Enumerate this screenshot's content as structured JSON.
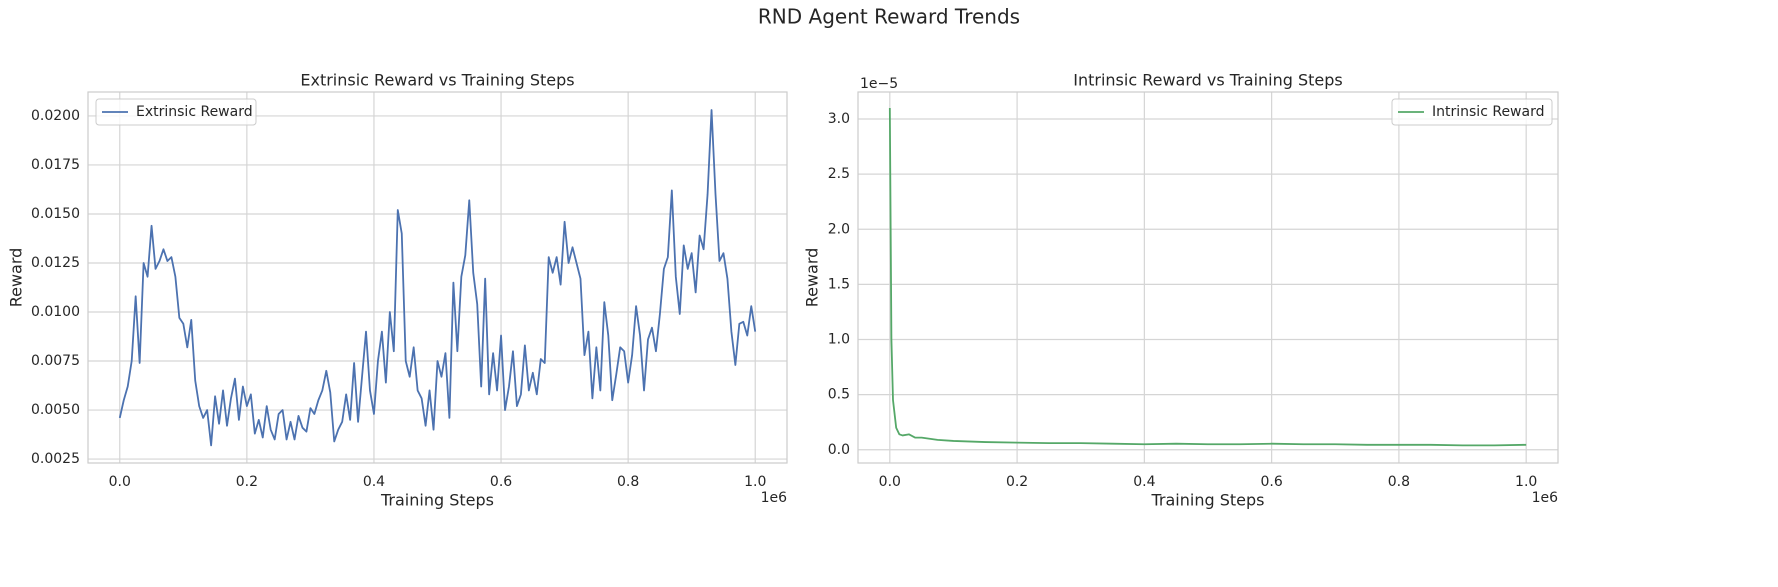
{
  "title": "RND Agent Reward Trends",
  "chart_data": [
    {
      "type": "line",
      "title": "Extrinsic Reward vs Training Steps",
      "xlabel": "Training Steps",
      "ylabel": "Reward",
      "x_offset_label": "1e6",
      "legend": "upper left",
      "grid": true,
      "x": [
        0,
        6250,
        12500,
        18750,
        25000,
        31250,
        37500,
        43750,
        50000,
        56250,
        62500,
        68750,
        75000,
        81250,
        87500,
        93750,
        100000,
        106250,
        112500,
        118750,
        125000,
        131250,
        137500,
        143750,
        150000,
        156250,
        162500,
        168750,
        175000,
        181250,
        187500,
        193750,
        200000,
        206250,
        212500,
        218750,
        225000,
        231250,
        237500,
        243750,
        250000,
        256250,
        262500,
        268750,
        275000,
        281250,
        287500,
        293750,
        300000,
        306250,
        312500,
        318750,
        325000,
        331250,
        337500,
        343750,
        350000,
        356250,
        362500,
        368750,
        375000,
        381250,
        387500,
        393750,
        400000,
        406250,
        412500,
        418750,
        425000,
        431250,
        437500,
        443750,
        450000,
        456250,
        462500,
        468750,
        475000,
        481250,
        487500,
        493750,
        500000,
        506250,
        512500,
        518750,
        525000,
        531250,
        537500,
        543750,
        550000,
        556250,
        562500,
        568750,
        575000,
        581250,
        587500,
        593750,
        600000,
        606250,
        612500,
        618750,
        625000,
        631250,
        637500,
        643750,
        650000,
        656250,
        662500,
        668750,
        675000,
        681250,
        687500,
        693750,
        700000,
        706250,
        712500,
        718750,
        725000,
        731250,
        737500,
        743750,
        750000,
        756250,
        762500,
        768750,
        775000,
        781250,
        787500,
        793750,
        800000,
        806250,
        812500,
        818750,
        825000,
        831250,
        837500,
        843750,
        850000,
        856250,
        862500,
        868750,
        875000,
        881250,
        887500,
        893750,
        900000,
        906250,
        912500,
        918750,
        925000,
        931250,
        937500,
        943750,
        950000,
        956250,
        962500,
        968750,
        975000,
        981250,
        987500,
        993750,
        1000000
      ],
      "series": [
        {
          "name": "Extrinsic Reward",
          "color": "#4c72b0",
          "values": [
            0.0046,
            0.0055,
            0.0062,
            0.0075,
            0.0108,
            0.0074,
            0.0125,
            0.0118,
            0.0144,
            0.0122,
            0.0126,
            0.0132,
            0.0126,
            0.0128,
            0.0118,
            0.0097,
            0.0094,
            0.0082,
            0.0096,
            0.0065,
            0.0052,
            0.0046,
            0.005,
            0.0032,
            0.0057,
            0.0043,
            0.006,
            0.0042,
            0.0056,
            0.0066,
            0.0045,
            0.0062,
            0.0052,
            0.0058,
            0.0038,
            0.0045,
            0.0036,
            0.0052,
            0.004,
            0.0035,
            0.0048,
            0.005,
            0.0035,
            0.0044,
            0.0035,
            0.0047,
            0.0041,
            0.0039,
            0.0051,
            0.0048,
            0.0055,
            0.006,
            0.007,
            0.0059,
            0.0034,
            0.004,
            0.0044,
            0.0058,
            0.0045,
            0.0074,
            0.0044,
            0.0067,
            0.009,
            0.006,
            0.0048,
            0.0075,
            0.009,
            0.0064,
            0.01,
            0.008,
            0.0152,
            0.014,
            0.0075,
            0.0067,
            0.0082,
            0.006,
            0.0056,
            0.0042,
            0.006,
            0.004,
            0.0075,
            0.0067,
            0.0079,
            0.0046,
            0.0115,
            0.008,
            0.0118,
            0.0129,
            0.0157,
            0.012,
            0.0104,
            0.0062,
            0.0117,
            0.0058,
            0.0079,
            0.006,
            0.0088,
            0.005,
            0.0062,
            0.008,
            0.0052,
            0.0058,
            0.0083,
            0.006,
            0.0069,
            0.0058,
            0.0076,
            0.0074,
            0.0128,
            0.012,
            0.0128,
            0.0114,
            0.0146,
            0.0125,
            0.0133,
            0.0125,
            0.0117,
            0.0078,
            0.009,
            0.0056,
            0.0082,
            0.006,
            0.0105,
            0.0088,
            0.0055,
            0.0068,
            0.0082,
            0.008,
            0.0064,
            0.0078,
            0.0103,
            0.0088,
            0.006,
            0.0086,
            0.0092,
            0.008,
            0.0099,
            0.0122,
            0.0128,
            0.0162,
            0.0118,
            0.0099,
            0.0134,
            0.0122,
            0.013,
            0.011,
            0.0139,
            0.0132,
            0.016,
            0.0203,
            0.016,
            0.0126,
            0.013,
            0.0117,
            0.009,
            0.0073,
            0.0094,
            0.0095,
            0.0088,
            0.0103,
            0.009
          ]
        }
      ],
      "xlim": [
        -50000,
        1050000
      ],
      "xticks": [
        {
          "value": 0,
          "label": "0.0"
        },
        {
          "value": 200000,
          "label": "0.2"
        },
        {
          "value": 400000,
          "label": "0.4"
        },
        {
          "value": 600000,
          "label": "0.6"
        },
        {
          "value": 800000,
          "label": "0.8"
        },
        {
          "value": 1000000,
          "label": "1.0"
        }
      ],
      "ylim": [
        0.0023,
        0.02122
      ],
      "yticks": [
        0.0025,
        {
          "value": 0.005,
          "label": "0.0050"
        },
        0.0075,
        {
          "value": 0.01,
          "label": "0.0100"
        },
        0.0125,
        {
          "value": 0.015,
          "label": "0.0150"
        },
        0.0175,
        {
          "value": 0.02,
          "label": "0.0200"
        }
      ]
    },
    {
      "type": "line",
      "title": "Intrinsic Reward vs Training Steps",
      "xlabel": "Training Steps",
      "ylabel": "Reward",
      "x_offset_label": "1e6",
      "y_offset_label": "1e−5",
      "legend": "upper right",
      "grid": true,
      "x": [
        0,
        2500,
        5000,
        10000,
        15000,
        20000,
        30000,
        40000,
        50000,
        75000,
        100000,
        150000,
        200000,
        250000,
        300000,
        350000,
        400000,
        450000,
        500000,
        550000,
        600000,
        650000,
        700000,
        750000,
        800000,
        850000,
        900000,
        950000,
        1000000
      ],
      "series": [
        {
          "name": "Intrinsic Reward",
          "color": "#55a868",
          "values": [
            3.1e-05,
            1e-05,
            4.5e-06,
            2e-06,
            1.4e-06,
            1.3e-06,
            1.4e-06,
            1.1e-06,
            1.1e-06,
            9e-07,
            8e-07,
            7e-07,
            6.5e-07,
            6e-07,
            6e-07,
            5.5e-07,
            5e-07,
            5.5e-07,
            5e-07,
            5e-07,
            5.5e-07,
            5e-07,
            5e-07,
            4.5e-07,
            4.5e-07,
            4.5e-07,
            4e-07,
            4e-07,
            4.5e-07
          ]
        }
      ],
      "xlim": [
        -50000,
        1050000
      ],
      "xticks": [
        {
          "value": 0,
          "label": "0.0"
        },
        {
          "value": 200000,
          "label": "0.2"
        },
        {
          "value": 400000,
          "label": "0.4"
        },
        {
          "value": 600000,
          "label": "0.6"
        },
        {
          "value": 800000,
          "label": "0.8"
        },
        {
          "value": 1000000,
          "label": "1.0"
        }
      ],
      "ylim": [
        -1.2e-06,
        3.245e-05
      ],
      "yticks": [
        {
          "value": 0,
          "label": "0.0"
        },
        {
          "value": 5e-06,
          "label": "0.5"
        },
        {
          "value": 1e-05,
          "label": "1.0"
        },
        {
          "value": 1.5e-05,
          "label": "1.5"
        },
        {
          "value": 2e-05,
          "label": "2.0"
        },
        {
          "value": 2.5e-05,
          "label": "2.5"
        },
        {
          "value": 3e-05,
          "label": "3.0"
        }
      ]
    }
  ]
}
